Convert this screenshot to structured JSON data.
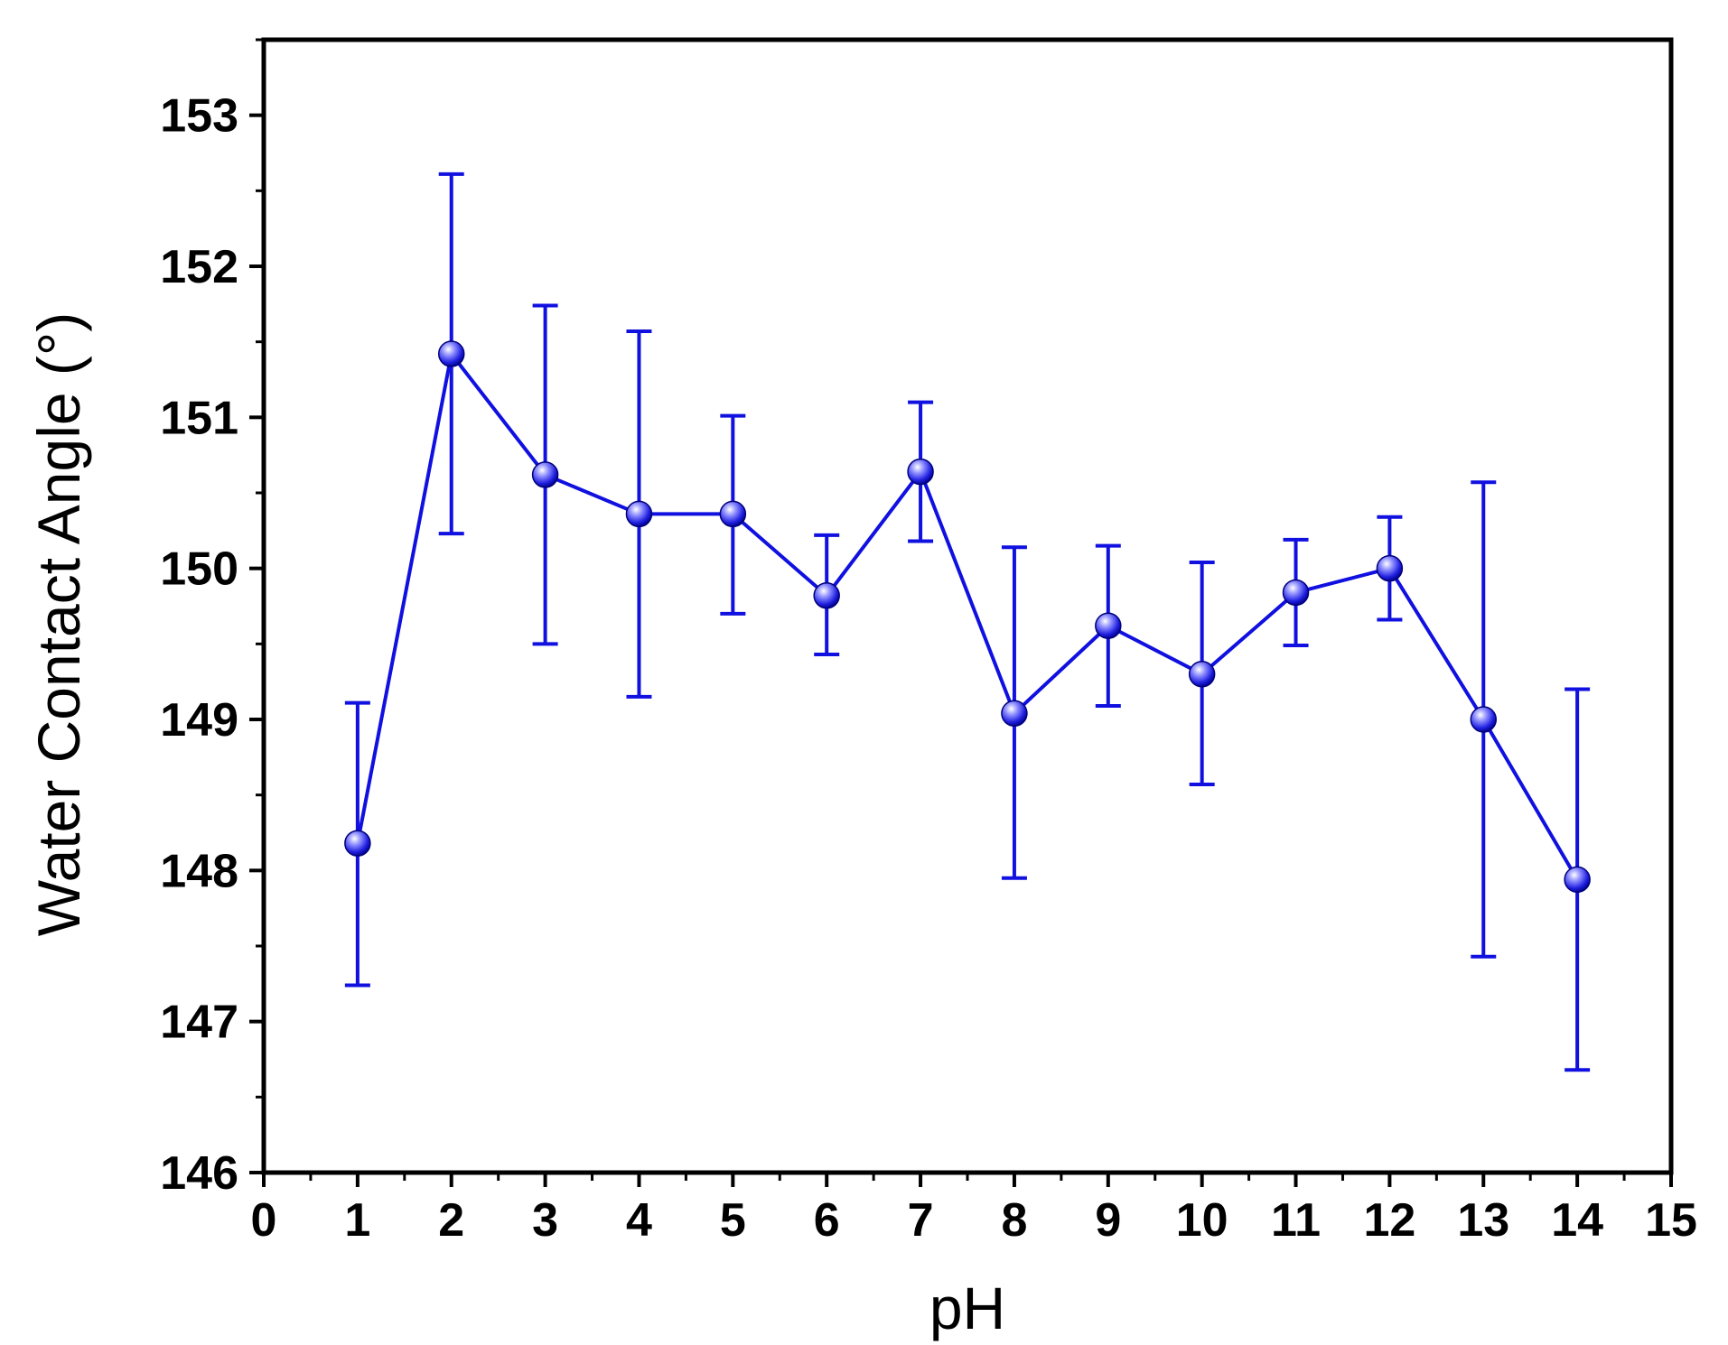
{
  "chart_data": {
    "type": "line",
    "xlabel": "pH",
    "ylabel": "Water Contact Angle (°)",
    "xlim": [
      0,
      15
    ],
    "ylim": [
      146,
      153.5
    ],
    "x_ticks": [
      0,
      1,
      2,
      3,
      4,
      5,
      6,
      7,
      8,
      9,
      10,
      11,
      12,
      13,
      14,
      15
    ],
    "y_ticks": [
      146,
      147,
      148,
      149,
      150,
      151,
      152,
      153
    ],
    "grid": false,
    "legend": "none",
    "error_bars": true,
    "series": [
      {
        "color": "#1010e0",
        "marker": "sphere",
        "x": [
          1,
          2,
          3,
          4,
          5,
          6,
          7,
          8,
          9,
          10,
          11,
          12,
          13,
          14
        ],
        "y": [
          148.18,
          151.42,
          150.62,
          150.36,
          150.36,
          149.82,
          150.64,
          149.04,
          149.62,
          149.3,
          149.84,
          150.0,
          149.0,
          147.94
        ],
        "yerr_low": [
          147.24,
          150.23,
          149.5,
          149.15,
          149.7,
          149.43,
          150.18,
          147.95,
          149.09,
          148.57,
          149.49,
          149.66,
          147.43,
          146.68
        ],
        "yerr_high": [
          149.11,
          152.61,
          151.74,
          151.57,
          151.01,
          150.22,
          151.1,
          150.14,
          150.15,
          150.04,
          150.19,
          150.34,
          150.57,
          149.2
        ]
      }
    ]
  }
}
